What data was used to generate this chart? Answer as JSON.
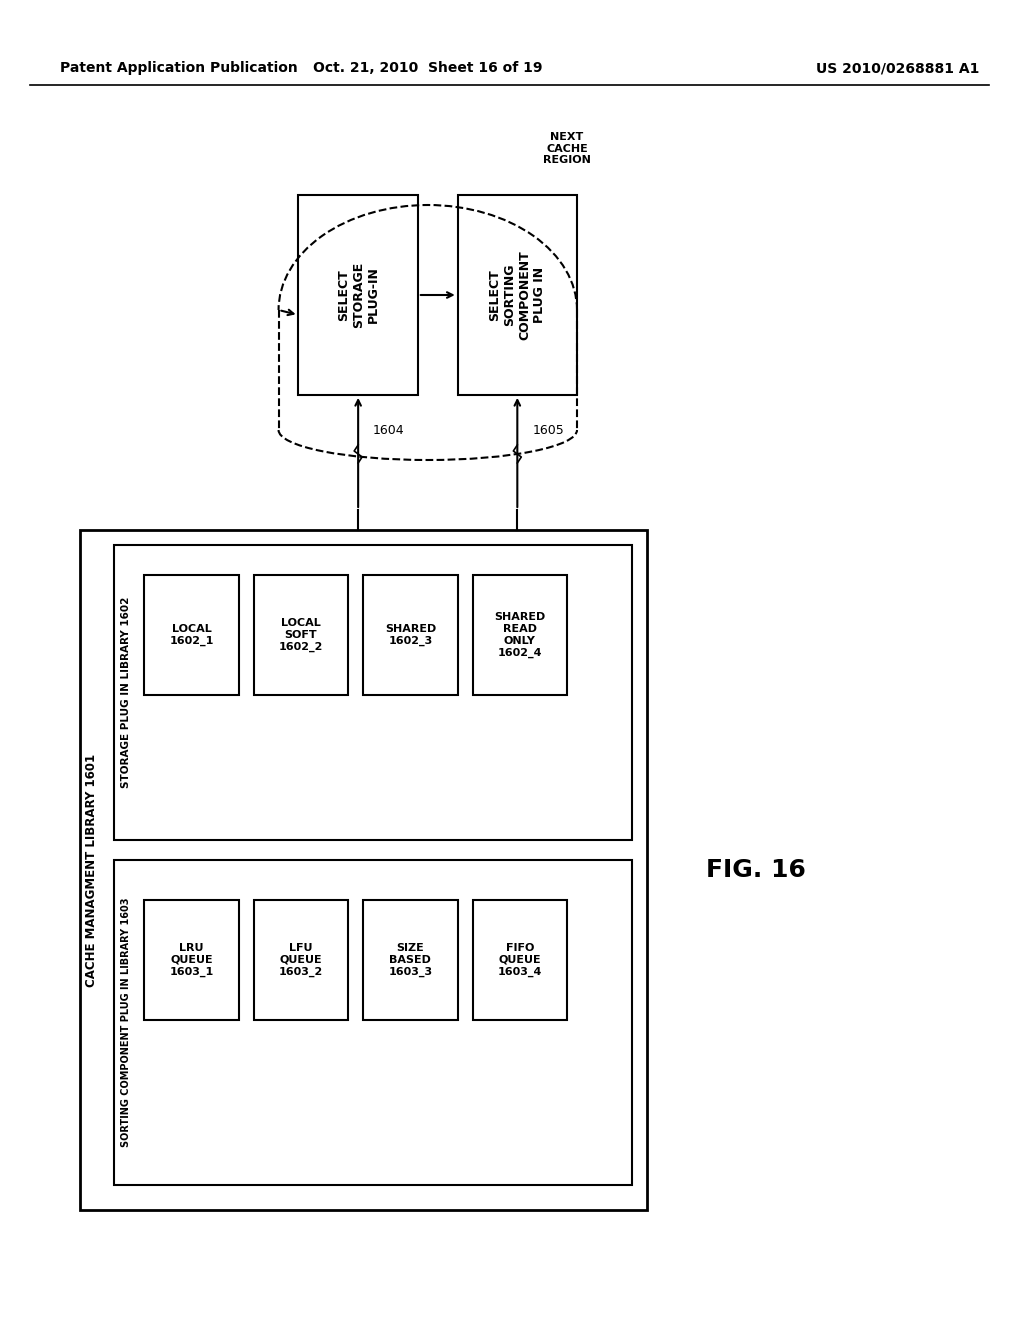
{
  "bg_color": "#ffffff",
  "header_left": "Patent Application Publication",
  "header_mid": "Oct. 21, 2010  Sheet 16 of 19",
  "header_right": "US 2010/0268881 A1",
  "fig_label": "FIG. 16",
  "next_cache_region_label": "NEXT\nCACHE\nREGION",
  "select_storage_label": "SELECT\nSTORAGE\nPLUG-IN",
  "select_sorting_label": "SELECT\nSORTING\nCOMPONENT\nPLUG IN",
  "ref_1604": "1604",
  "ref_1605": "1605",
  "cache_mgmt_label": "CACHE MANAGMENT LIBRARY 1601",
  "storage_plug_label": "STORAGE PLUG IN LIBRARY 1602",
  "sorting_plug_label": "SORTING COMPONENT PLUG IN LIBRARY 1603",
  "storage_boxes": [
    {
      "label": "LOCAL\n1602_1"
    },
    {
      "label": "LOCAL\nSOFT\n1602_2"
    },
    {
      "label": "SHARED\n1602_3"
    },
    {
      "label": "SHARED\nREAD\nONLY\n1602_4"
    }
  ],
  "sorting_boxes": [
    {
      "label": "LRU\nQUEUE\n1603_1"
    },
    {
      "label": "LFU\nQUEUE\n1603_2"
    },
    {
      "label": "SIZE\nBASED\n1603_3"
    },
    {
      "label": "FIFO\nQUEUE\n1603_4"
    }
  ]
}
